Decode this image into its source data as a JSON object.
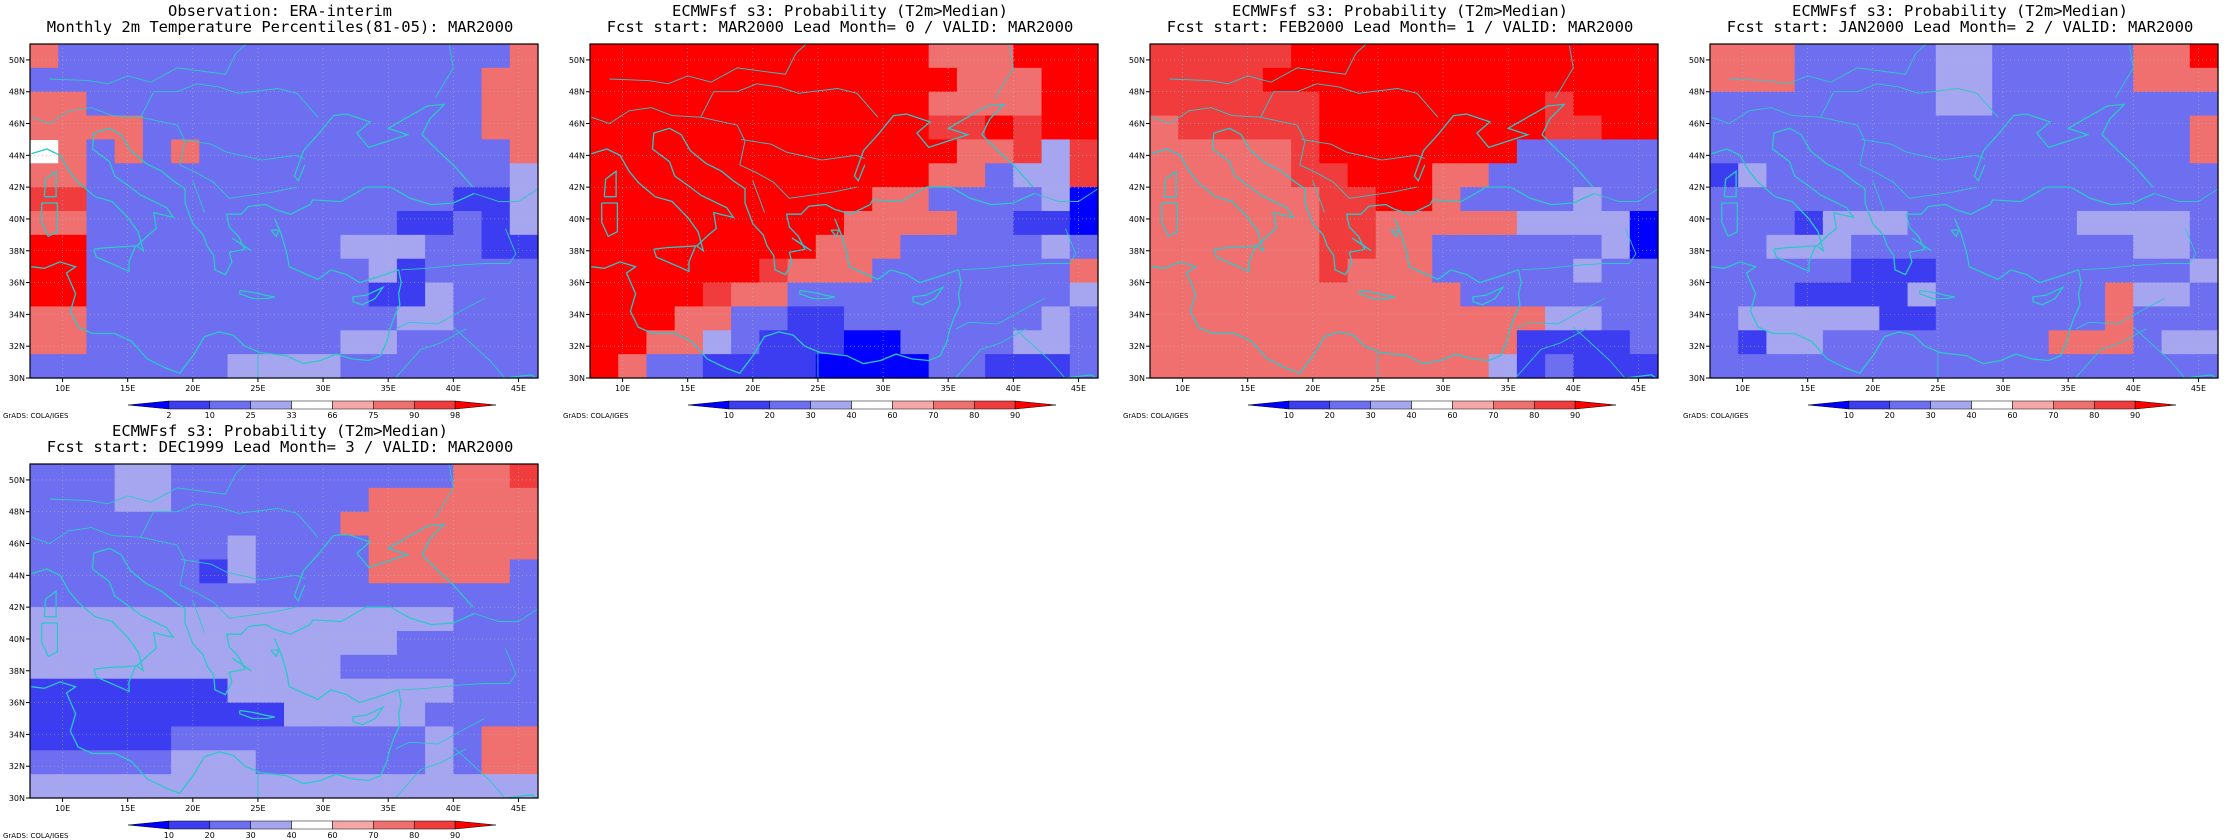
{
  "grads_label": "GrADS: COLA/IGES",
  "lon_ticks": [
    "10E",
    "15E",
    "20E",
    "25E",
    "30E",
    "35E",
    "40E",
    "45E"
  ],
  "lat_ticks": [
    "30N",
    "32N",
    "34N",
    "36N",
    "38N",
    "40N",
    "42N",
    "44N",
    "46N",
    "48N",
    "50N"
  ],
  "colors": {
    "scale": [
      "#0000ff",
      "#3c3cf0",
      "#6e6ef0",
      "#a6a6f0",
      "#ffffff",
      "#f5a6a6",
      "#f07070",
      "#f03c3c",
      "#ff0000"
    ],
    "coast": "#2cc8c8"
  },
  "panels": [
    {
      "id": "obs",
      "title_line1": "Observation: ERA-interim",
      "title_line2": "Monthly 2m Temperature Percentiles(81-05): MAR2000",
      "colorbar_labels": [
        "2",
        "10",
        "25",
        "33",
        "66",
        "75",
        "90",
        "98"
      ],
      "grid": [
        "622222222222222226",
        "222222222222222266",
        "662222222222222266",
        "666622222222222266",
        "462626222222222226",
        "662222222222222223",
        "772222222222222113",
        "662222222222211213",
        "882222222223332211",
        "882222222222312222",
        "882222222222113222",
        "662222222222233222",
        "662222222223322222",
        "222222233332222222"
      ]
    },
    {
      "id": "lead0",
      "title_line1": "ECMWFsf s3: Probability (T2m>Median)",
      "title_line2": "Fcst start: MAR2000  Lead Month= 0 / VALID: MAR2000",
      "colorbar_labels": [
        "10",
        "20",
        "30",
        "40",
        "60",
        "70",
        "80",
        "90"
      ],
      "grid": [
        "888888888888666888",
        "888888888888866688",
        "888888888888666688",
        "888888888888778788",
        "888888888888866737",
        "888888888888662337",
        "888888888866222230",
        "888888888666622110",
        "888888886662222232",
        "888888766622222226",
        "888876622222222223",
        "888662211222222232",
        "886632111002222332",
        "862211110000221112"
      ]
    },
    {
      "id": "lead1",
      "title_line1": "ECMWFsf s3: Probability (T2m>Median)",
      "title_line2": "Fcst start: FEB2000  Lead Month= 1 / VALID: MAR2000",
      "colorbar_labels": [
        "10",
        "20",
        "30",
        "40",
        "60",
        "70",
        "80",
        "90"
      ],
      "grid": [
        "777778888888888888",
        "777788888888888888",
        "777777888888887888",
        "677777888888887788",
        "666667888888822222",
        "666667788866222222",
        "666666778862222322",
        "666666776666633330",
        "666666776622222230",
        "666666766622222322",
        "666666666662222222",
        "666666666666663322",
        "666666666666611112",
        "666666666666312111"
      ]
    },
    {
      "id": "lead2",
      "title_line1": "ECMWFsf s3: Probability (T2m>Median)",
      "title_line2": "Fcst start: JAN2000  Lead Month= 2 / VALID: MAR2000",
      "colorbar_labels": [
        "10",
        "20",
        "30",
        "40",
        "60",
        "70",
        "80",
        "90"
      ],
      "grid": [
        "666222223322222668",
        "666222223322222666",
        "222222223322222222",
        "222222222222222226",
        "222222222222222226",
        "132222222222222222",
        "222222222222222222",
        "222133322222233332",
        "223332222222222332",
        "222221112222222223",
        "222111132222226332",
        "233333112222226222",
        "213322222222666233",
        "222222222222222222"
      ]
    },
    {
      "id": "lead3",
      "title_line1": "ECMWFsf s3: Probability (T2m>Median)",
      "title_line2": "Fcst start: DEC1999  Lead Month= 3 / VALID: MAR2000",
      "colorbar_labels": [
        "10",
        "20",
        "30",
        "40",
        "60",
        "70",
        "80",
        "90"
      ],
      "grid": [
        "222332222222222667",
        "222332222222666666",
        "222222222226666666",
        "222222232222666666",
        "222222132222666662",
        "222222222222222222",
        "333333333333333222",
        "333333333333322222",
        "333333333332222222",
        "111111133333333222",
        "111111111333332222",
        "111112222222223266",
        "222223332222223266",
        "333333333333333333"
      ]
    }
  ]
}
